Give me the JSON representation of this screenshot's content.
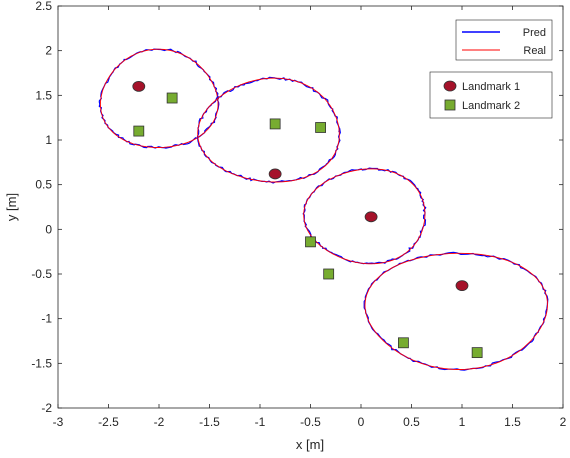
{
  "chart_data": {
    "type": "line",
    "xlabel": "x [m]",
    "ylabel": "y [m]",
    "xlim": [
      -3,
      2
    ],
    "ylim": [
      -2,
      2.5
    ],
    "x_ticks": [
      "-3",
      "-2.5",
      "-2",
      "-1.5",
      "-1",
      "-0.5",
      "0",
      "0.5",
      "1",
      "1.5",
      "2"
    ],
    "y_ticks": [
      "-2",
      "-1.5",
      "-1",
      "-0.5",
      "0",
      "0.5",
      "1",
      "1.5",
      "2",
      "2.5"
    ],
    "grid": false,
    "legend_trajectory": {
      "placement": "top-right",
      "entries": [
        {
          "name": "Pred",
          "color": "#0000ff"
        },
        {
          "name": "Real",
          "color": "#ff0000"
        }
      ]
    },
    "legend_landmarks": {
      "placement": "right",
      "entries": [
        {
          "name": "Landmark 1",
          "color": "#a5122a",
          "marker": "circle"
        },
        {
          "name": "Landmark 2",
          "color": "#77ac30",
          "marker": "square"
        }
      ]
    },
    "loops": [
      {
        "center": [
          -2.0,
          1.45
        ],
        "rx": 0.58,
        "ry": 0.55
      },
      {
        "center": [
          -0.9,
          1.1
        ],
        "rx": 0.7,
        "ry": 0.58
      },
      {
        "center": [
          0.05,
          0.15
        ],
        "rx": 0.6,
        "ry": 0.53
      },
      {
        "center": [
          0.95,
          -0.9
        ],
        "rx": 0.9,
        "ry": 0.65
      }
    ],
    "landmarks_1": [
      {
        "x": -2.2,
        "y": 1.6
      },
      {
        "x": -0.85,
        "y": 0.62
      },
      {
        "x": 0.1,
        "y": 0.14
      },
      {
        "x": 1.0,
        "y": -0.63
      }
    ],
    "landmarks_2": [
      {
        "x": -1.87,
        "y": 1.47
      },
      {
        "x": -2.2,
        "y": 1.1
      },
      {
        "x": -0.85,
        "y": 1.18
      },
      {
        "x": -0.4,
        "y": 1.14
      },
      {
        "x": -0.5,
        "y": -0.14
      },
      {
        "x": -0.32,
        "y": -0.5
      },
      {
        "x": 0.42,
        "y": -1.27
      },
      {
        "x": 1.15,
        "y": -1.38
      }
    ]
  }
}
